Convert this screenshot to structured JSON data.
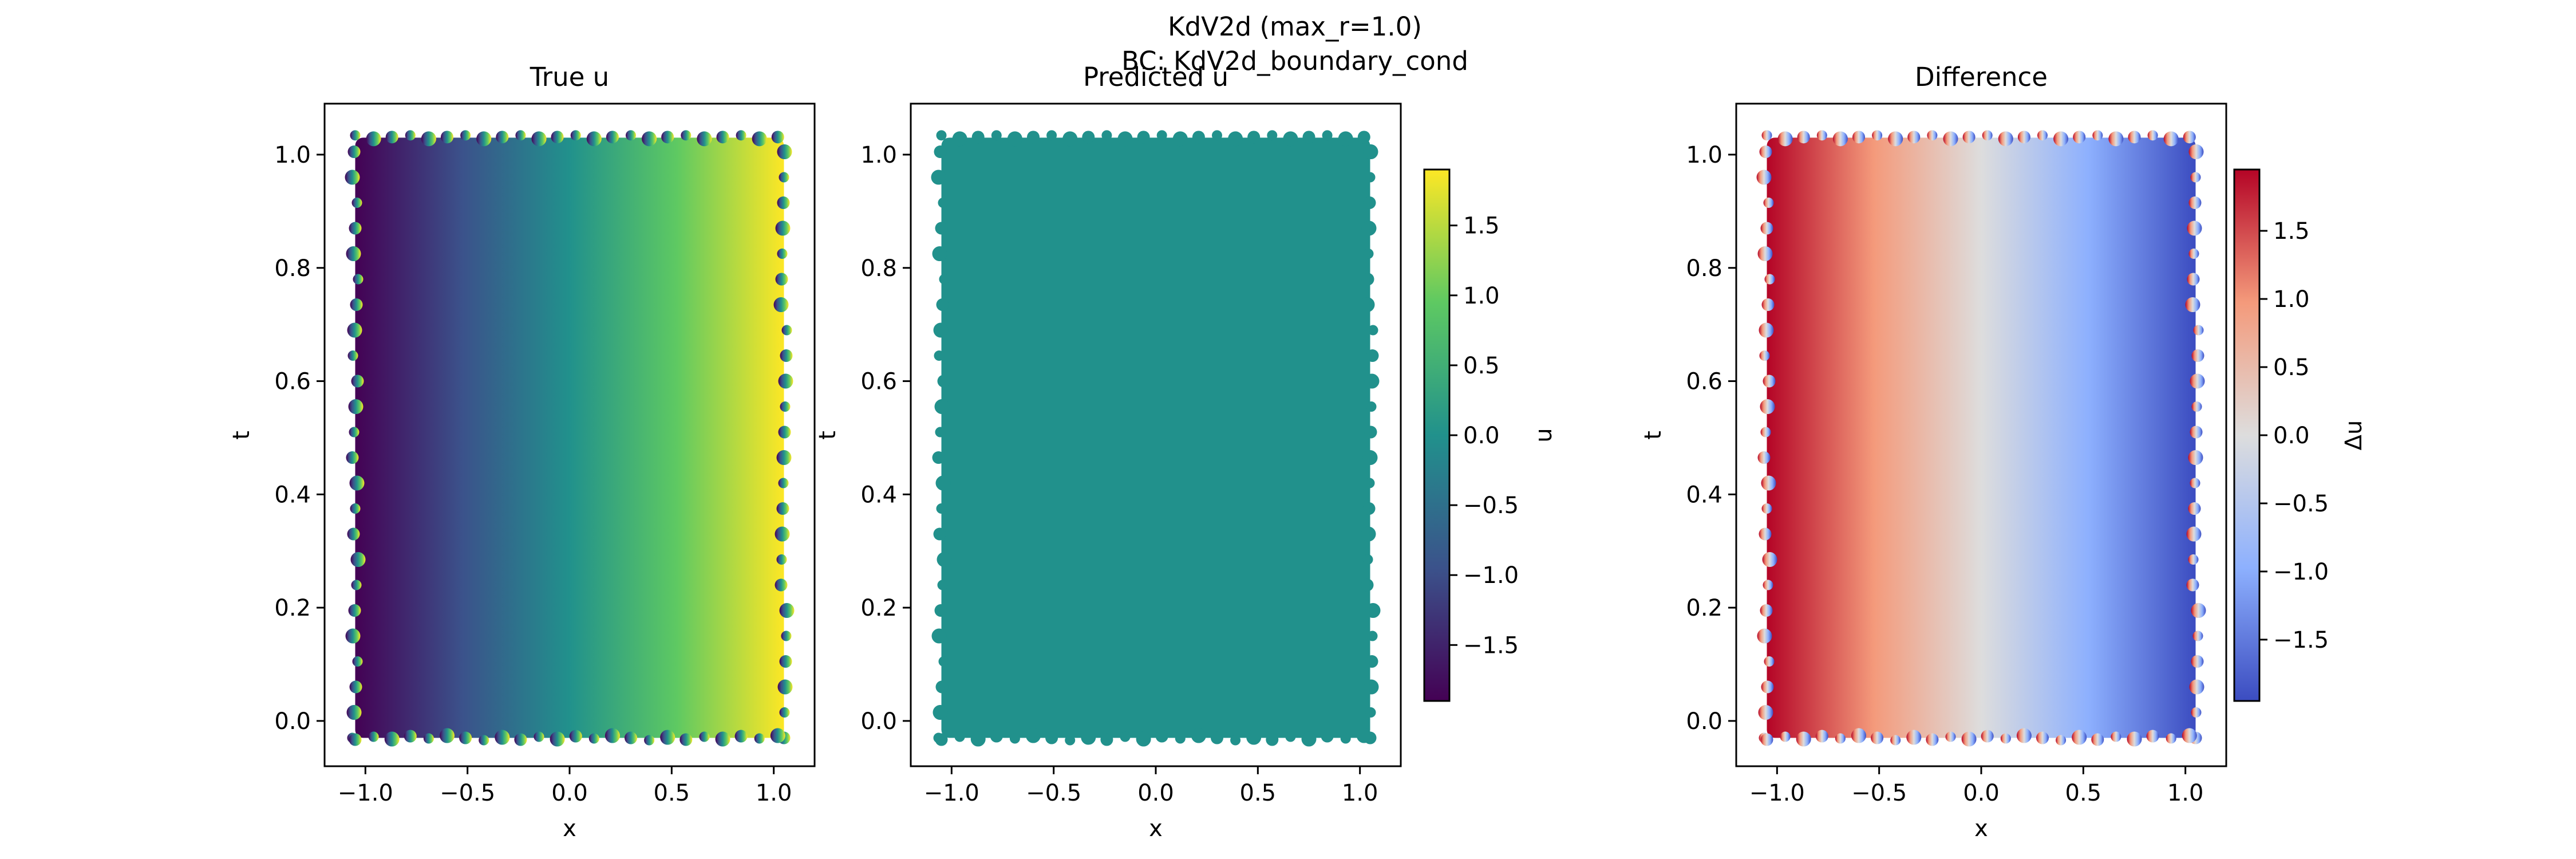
{
  "figure": {
    "title_line1": "KdV2d (max_r=1.0)",
    "title_line2": "BC: KdV2d_boundary_cond"
  },
  "chart_data": [
    {
      "type": "scatter",
      "title": "True u",
      "xlabel": "x",
      "ylabel": "t",
      "xlim": [
        -1.2,
        1.2
      ],
      "ylim": [
        -0.08,
        1.09
      ],
      "xticks": [
        -1.0,
        -0.5,
        0.0,
        0.5,
        1.0
      ],
      "xtick_labels": [
        "−1.0",
        "−0.5",
        "0.0",
        "0.5",
        "1.0"
      ],
      "yticks": [
        0.0,
        0.2,
        0.4,
        0.6,
        0.8,
        1.0
      ],
      "ytick_labels": [
        "0.0",
        "0.2",
        "0.4",
        "0.6",
        "0.8",
        "1.0"
      ],
      "x_range": [
        -1.05,
        1.05
      ],
      "t_range": [
        -0.03,
        1.03
      ],
      "field": "u ≈ 1.8·x (increases left to right, uniform in t)",
      "u_left": -1.85,
      "u_right": 1.85,
      "colormap": "viridis"
    },
    {
      "type": "scatter",
      "title": "Predicted u",
      "xlabel": "x",
      "ylabel": "t",
      "xlim": [
        -1.2,
        1.2
      ],
      "ylim": [
        -0.08,
        1.09
      ],
      "xticks": [
        -1.0,
        -0.5,
        0.0,
        0.5,
        1.0
      ],
      "xtick_labels": [
        "−1.0",
        "−0.5",
        "0.0",
        "0.5",
        "1.0"
      ],
      "yticks": [
        0.0,
        0.2,
        0.4,
        0.6,
        0.8,
        1.0
      ],
      "ytick_labels": [
        "0.0",
        "0.2",
        "0.4",
        "0.6",
        "0.8",
        "1.0"
      ],
      "x_range": [
        -1.05,
        1.05
      ],
      "t_range": [
        -0.03,
        1.03
      ],
      "field": "u ≈ 0 (constant)",
      "u_value": 0.0,
      "colormap": "viridis",
      "colorbar": {
        "label": "u",
        "range": [
          -1.9,
          1.9
        ],
        "ticks": [
          -1.5,
          -1.0,
          -0.5,
          0.0,
          0.5,
          1.0,
          1.5
        ],
        "tick_labels": [
          "−1.5",
          "−1.0",
          "−0.5",
          "0.0",
          "0.5",
          "1.0",
          "1.5"
        ]
      }
    },
    {
      "type": "scatter",
      "title": "Difference",
      "xlabel": "x",
      "ylabel": "t",
      "xlim": [
        -1.2,
        1.2
      ],
      "ylim": [
        -0.08,
        1.09
      ],
      "xticks": [
        -1.0,
        -0.5,
        0.0,
        0.5,
        1.0
      ],
      "xtick_labels": [
        "−1.0",
        "−0.5",
        "0.0",
        "0.5",
        "1.0"
      ],
      "yticks": [
        0.0,
        0.2,
        0.4,
        0.6,
        0.8,
        1.0
      ],
      "ytick_labels": [
        "0.0",
        "0.2",
        "0.4",
        "0.6",
        "0.8",
        "1.0"
      ],
      "x_range": [
        -1.05,
        1.05
      ],
      "t_range": [
        -0.03,
        1.03
      ],
      "field": "Δu ≈ −1.8·x (decreases left to right)",
      "du_left": 1.85,
      "du_right": -1.85,
      "colormap": "coolwarm",
      "colorbar": {
        "label": "Δu",
        "range": [
          -1.95,
          1.95
        ],
        "ticks": [
          -1.5,
          -1.0,
          -0.5,
          0.0,
          0.5,
          1.0,
          1.5
        ],
        "tick_labels": [
          "−1.5",
          "−1.0",
          "−0.5",
          "0.0",
          "0.5",
          "1.0",
          "1.5"
        ]
      }
    }
  ],
  "colors": {
    "viridis": [
      "#440154",
      "#3b528b",
      "#21918c",
      "#5ec962",
      "#fde725"
    ],
    "viridis_mid": "#21918c",
    "coolwarm": [
      "#3b4cc0",
      "#8db0fe",
      "#dddddd",
      "#f49a7b",
      "#b40426"
    ]
  }
}
